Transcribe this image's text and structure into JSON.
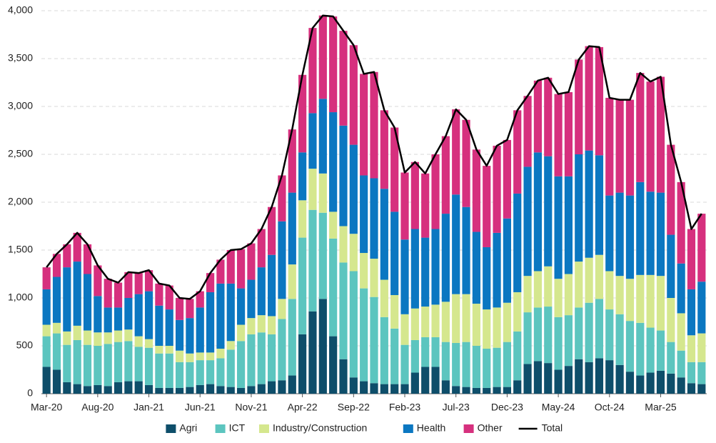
{
  "chart_data": {
    "type": "stacked_bar_line",
    "categories": [
      "Mar-20",
      null,
      null,
      null,
      null,
      "Aug-20",
      null,
      null,
      null,
      null,
      "Jan-21",
      null,
      null,
      null,
      null,
      "Jun-21",
      null,
      null,
      null,
      null,
      "Nov-21",
      null,
      null,
      null,
      null,
      "Apr-22",
      null,
      null,
      null,
      null,
      "Sep-22",
      null,
      null,
      null,
      null,
      "Feb-23",
      null,
      null,
      null,
      null,
      "Jul-23",
      null,
      null,
      null,
      null,
      "Dec-23",
      null,
      null,
      null,
      null,
      "May-24",
      null,
      null,
      null,
      null,
      "Oct-24",
      null,
      null,
      null,
      null,
      "Mar-25",
      null,
      null,
      null,
      null
    ],
    "series": [
      {
        "name": "Agri",
        "color": "#0e4e6a",
        "values": [
          280,
          250,
          120,
          100,
          80,
          90,
          80,
          120,
          130,
          130,
          90,
          60,
          60,
          60,
          70,
          90,
          100,
          80,
          70,
          60,
          80,
          100,
          130,
          140,
          190,
          620,
          860,
          990,
          600,
          360,
          170,
          130,
          110,
          100,
          100,
          100,
          220,
          280,
          280,
          140,
          80,
          70,
          60,
          60,
          70,
          70,
          140,
          310,
          340,
          320,
          250,
          290,
          360,
          330,
          370,
          350,
          300,
          230,
          190,
          220,
          240,
          210,
          170,
          110,
          100
        ]
      },
      {
        "name": "ICT",
        "color": "#5cc5bf",
        "values": [
          320,
          380,
          390,
          460,
          430,
          410,
          440,
          420,
          420,
          360,
          390,
          360,
          360,
          270,
          260,
          260,
          250,
          290,
          390,
          490,
          540,
          540,
          490,
          640,
          800,
          1010,
          1060,
          900,
          1020,
          1010,
          1110,
          970,
          900,
          700,
          580,
          410,
          340,
          310,
          310,
          400,
          450,
          470,
          440,
          410,
          410,
          470,
          510,
          540,
          560,
          590,
          550,
          530,
          540,
          620,
          620,
          530,
          530,
          530,
          550,
          470,
          420,
          330,
          280,
          220,
          230
        ]
      },
      {
        "name": "Industry/Construction",
        "color": "#d5e78e",
        "values": [
          120,
          110,
          140,
          150,
          150,
          140,
          120,
          120,
          120,
          110,
          90,
          80,
          80,
          120,
          90,
          80,
          80,
          100,
          90,
          170,
          170,
          180,
          190,
          210,
          360,
          390,
          430,
          410,
          280,
          380,
          390,
          370,
          400,
          390,
          350,
          320,
          330,
          320,
          340,
          420,
          510,
          500,
          440,
          410,
          420,
          410,
          410,
          380,
          380,
          420,
          400,
          430,
          480,
          470,
          460,
          400,
          400,
          440,
          500,
          550,
          570,
          460,
          390,
          280,
          300
        ]
      },
      {
        "name": "Health",
        "color": "#0b77c1",
        "values": [
          370,
          480,
          670,
          670,
          590,
          380,
          260,
          240,
          330,
          440,
          500,
          420,
          380,
          320,
          370,
          470,
          630,
          680,
          600,
          380,
          400,
          500,
          640,
          810,
          750,
          500,
          580,
          780,
          1040,
          1050,
          930,
          810,
          840,
          950,
          870,
          780,
          830,
          720,
          790,
          920,
          1040,
          910,
          750,
          650,
          780,
          880,
          1030,
          1140,
          1240,
          1150,
          1070,
          1020,
          1120,
          1120,
          1040,
          790,
          870,
          870,
          970,
          870,
          870,
          660,
          520,
          480,
          540
        ]
      },
      {
        "name": "Other",
        "color": "#d6307e",
        "values": [
          230,
          240,
          240,
          300,
          310,
          320,
          300,
          260,
          270,
          220,
          220,
          230,
          250,
          230,
          200,
          170,
          200,
          250,
          350,
          410,
          380,
          400,
          500,
          480,
          660,
          810,
          890,
          870,
          1000,
          990,
          1040,
          1060,
          1110,
          820,
          880,
          700,
          700,
          670,
          780,
          810,
          890,
          910,
          860,
          850,
          910,
          820,
          870,
          740,
          750,
          820,
          860,
          880,
          990,
          1090,
          1130,
          1020,
          970,
          1000,
          1140,
          1150,
          1210,
          940,
          850,
          630,
          710
        ]
      },
      {
        "name": "Total",
        "color": "#000000",
        "line": true,
        "values": [
          1320,
          1460,
          1560,
          1680,
          1560,
          1340,
          1200,
          1160,
          1270,
          1260,
          1290,
          1150,
          1130,
          1000,
          990,
          1070,
          1260,
          1400,
          1500,
          1510,
          1570,
          1720,
          1950,
          2280,
          2760,
          3330,
          3820,
          3950,
          3940,
          3790,
          3640,
          3340,
          3360,
          2960,
          2780,
          2310,
          2420,
          2300,
          2500,
          2690,
          2970,
          2860,
          2550,
          2380,
          2590,
          2650,
          2960,
          3110,
          3270,
          3300,
          3130,
          3150,
          3490,
          3630,
          3620,
          3090,
          3070,
          3070,
          3350,
          3260,
          3310,
          2600,
          2210,
          1720,
          1880
        ]
      }
    ],
    "ylim": [
      0,
      4000
    ],
    "yticks": [
      0,
      500,
      {
        "value": 1000,
        "label": "1,000"
      },
      {
        "value": 1500,
        "label": "1,500"
      },
      {
        "value": 2000,
        "label": "2,000"
      },
      {
        "value": 2500,
        "label": "2,500"
      },
      {
        "value": 3000,
        "label": "3,000"
      },
      {
        "value": 3500,
        "label": "3,500"
      },
      {
        "value": 4000,
        "label": "4,000"
      }
    ],
    "grid": true,
    "legend": "bottom"
  }
}
